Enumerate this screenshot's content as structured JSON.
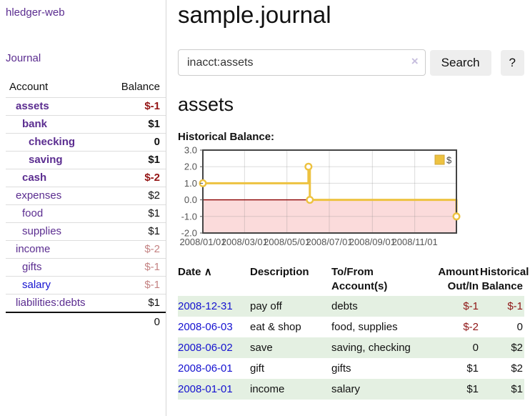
{
  "app": {
    "brand": "hledger-web",
    "nav_journal": "Journal"
  },
  "sidebar": {
    "accounts_header": {
      "account": "Account",
      "balance": "Balance"
    },
    "accounts": [
      {
        "name": "assets",
        "indent": 0,
        "bold": true,
        "link_style": "visited",
        "balance": "$-1",
        "balance_style": "neg-strong"
      },
      {
        "name": "bank",
        "indent": 1,
        "bold": true,
        "link_style": "visited",
        "balance": "$1",
        "balance_style": "pos-strong"
      },
      {
        "name": "checking",
        "indent": 2,
        "bold": true,
        "link_style": "visited",
        "balance": "0",
        "balance_style": "pos-strong"
      },
      {
        "name": "saving",
        "indent": 2,
        "bold": true,
        "link_style": "visited",
        "balance": "$1",
        "balance_style": "pos-strong"
      },
      {
        "name": "cash",
        "indent": 1,
        "bold": true,
        "link_style": "visited",
        "balance": "$-2",
        "balance_style": "neg-strong"
      },
      {
        "name": "expenses",
        "indent": 0,
        "bold": false,
        "link_style": "visited",
        "balance": "$2",
        "balance_style": "pos"
      },
      {
        "name": "food",
        "indent": 1,
        "bold": false,
        "link_style": "visited",
        "balance": "$1",
        "balance_style": "pos"
      },
      {
        "name": "supplies",
        "indent": 1,
        "bold": false,
        "link_style": "visited",
        "balance": "$1",
        "balance_style": "pos"
      },
      {
        "name": "income",
        "indent": 0,
        "bold": false,
        "link_style": "visited",
        "balance": "$-2",
        "balance_style": "neg-soft"
      },
      {
        "name": "gifts",
        "indent": 1,
        "bold": false,
        "link_style": "visited",
        "balance": "$-1",
        "balance_style": "neg-soft"
      },
      {
        "name": "salary",
        "indent": 1,
        "bold": false,
        "link_style": "unvisited",
        "balance": "$-1",
        "balance_style": "neg-soft"
      },
      {
        "name": "liabilities:debts",
        "indent": 0,
        "bold": false,
        "link_style": "visited",
        "balance": "$1",
        "balance_style": "pos"
      }
    ],
    "total": "0"
  },
  "header": {
    "title": "sample.journal"
  },
  "search": {
    "value": "inacct:assets",
    "clear_icon": "×",
    "button": "Search",
    "help_button": "?"
  },
  "account_page": {
    "heading": "assets",
    "chart_label": "Historical Balance:"
  },
  "chart_data": {
    "type": "line",
    "title": "Historical Balance:",
    "step": true,
    "xlim": [
      "2008-01-01",
      "2008-12-31"
    ],
    "ylim": [
      -2,
      3
    ],
    "x_ticks": [
      {
        "date": "2008-01-01",
        "label": "2008/01/01"
      },
      {
        "date": "2008-03-01",
        "label": "2008/03/01"
      },
      {
        "date": "2008-05-01",
        "label": "2008/05/01"
      },
      {
        "date": "2008-07-01",
        "label": "2008/07/01"
      },
      {
        "date": "2008-09-01",
        "label": "2008/09/01"
      },
      {
        "date": "2008-11-01",
        "label": "2008/11/01"
      }
    ],
    "y_ticks": [
      {
        "value": 3,
        "label": "3.0"
      },
      {
        "value": 2,
        "label": "2.0"
      },
      {
        "value": 1,
        "label": "1.0"
      },
      {
        "value": 0,
        "label": "0.0"
      },
      {
        "value": -1,
        "label": "-1.0"
      },
      {
        "value": -2,
        "label": "-2.0"
      }
    ],
    "series": [
      {
        "name": "$",
        "color": "#edc240",
        "points": [
          [
            "2008-01-01",
            1
          ],
          [
            "2008-06-01",
            2
          ],
          [
            "2008-06-03",
            0
          ],
          [
            "2008-12-31",
            -1
          ]
        ]
      }
    ],
    "legend": {
      "label": "$",
      "position": "top-right"
    },
    "grid": true,
    "negative_fill": "#fbdbdb",
    "zero_line_color": "#8b0000",
    "border_color": "#444444",
    "tick_label_color": "#545454"
  },
  "transactions": {
    "sort_indicator": "∧",
    "columns": [
      {
        "label": "Date",
        "sorted": true,
        "align": "left"
      },
      {
        "label": "Description",
        "align": "left"
      },
      {
        "label": "To/From Account(s)",
        "align": "left"
      },
      {
        "label": "Amount Out/In",
        "align": "right"
      },
      {
        "label": "Historical Balance",
        "align": "right"
      }
    ],
    "rows": [
      {
        "date": "2008-12-31",
        "description": "pay off",
        "accounts": "debts",
        "amount": "$-1",
        "amount_neg": true,
        "balance": "$-1",
        "balance_neg": true
      },
      {
        "date": "2008-06-03",
        "description": "eat & shop",
        "accounts": "food, supplies",
        "amount": "$-2",
        "amount_neg": true,
        "balance": "0",
        "balance_neg": false
      },
      {
        "date": "2008-06-02",
        "description": "save",
        "accounts": "saving, checking",
        "amount": "0",
        "amount_neg": false,
        "balance": "$2",
        "balance_neg": false
      },
      {
        "date": "2008-06-01",
        "description": "gift",
        "accounts": "gifts",
        "amount": "$1",
        "amount_neg": false,
        "balance": "$2",
        "balance_neg": false
      },
      {
        "date": "2008-01-01",
        "description": "income",
        "accounts": "salary",
        "amount": "$1",
        "amount_neg": false,
        "balance": "$1",
        "balance_neg": false
      }
    ]
  },
  "colors": {
    "link_purple": "#5b2d90",
    "link_blue": "#1512d0",
    "negative_strong": "#941414",
    "negative_table": "#8f1616",
    "negative_soft": "#c48383",
    "row_green": "#e4f0e2",
    "chart_gold": "#edc240",
    "chart_pink": "#fbdbdb",
    "zero_line": "#8b0000",
    "button_gray": "#eeeeee"
  }
}
